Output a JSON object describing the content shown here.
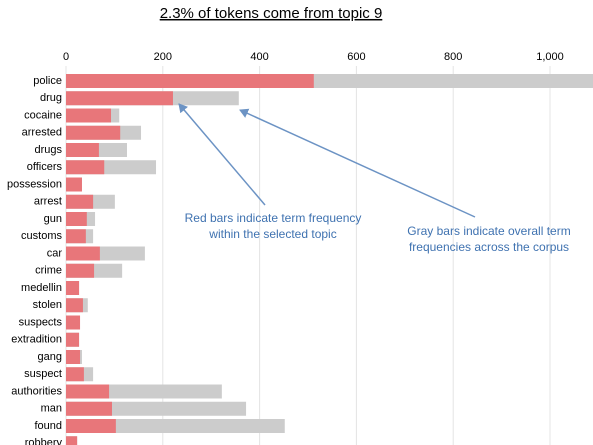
{
  "chart_data": {
    "type": "bar",
    "orientation": "horizontal",
    "title": "2.3% of tokens come from topic 9",
    "categories": [
      "police",
      "drug",
      "cocaine",
      "arrested",
      "drugs",
      "officers",
      "possession",
      "arrest",
      "gun",
      "customs",
      "car",
      "crime",
      "medellin",
      "stolen",
      "suspects",
      "extradition",
      "gang",
      "suspect",
      "authorities",
      "man",
      "found",
      "robbery"
    ],
    "series": [
      {
        "color": "#cccccc",
        "values": [
          1100,
          357,
          110,
          155,
          126,
          186,
          33,
          101,
          60,
          56,
          163,
          116,
          27,
          45,
          29,
          27,
          33,
          56,
          322,
          372,
          452,
          23
        ]
      },
      {
        "color": "#e8767a",
        "values": [
          512,
          221,
          93,
          112,
          68,
          79,
          33,
          56,
          43,
          41,
          70,
          58,
          27,
          35,
          29,
          27,
          29,
          37,
          89,
          95,
          103,
          23
        ]
      }
    ],
    "xlim": [
      0,
      1090
    ],
    "xticks": [
      0,
      200,
      400,
      600,
      800,
      {
        "value": 1000,
        "label": "1,000"
      }
    ],
    "grid": true,
    "annotations": [
      {
        "lines": [
          "Red bars indicate term frequency",
          "within the selected topic"
        ],
        "color": "#3f72b0"
      },
      {
        "lines": [
          "Gray bars indicate overall term",
          "frequencies across the corpus"
        ],
        "color": "#3f72b0"
      }
    ]
  }
}
